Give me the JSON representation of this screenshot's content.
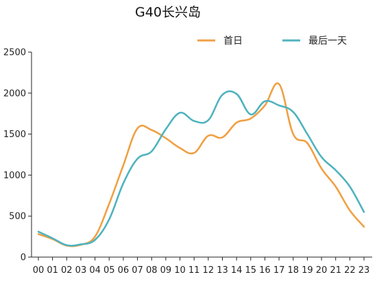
{
  "chart_data": {
    "type": "line",
    "title": "G40长兴岛",
    "xlabel": "",
    "ylabel": "",
    "categories": [
      "00",
      "01",
      "02",
      "03",
      "04",
      "05",
      "06",
      "07",
      "08",
      "09",
      "10",
      "11",
      "12",
      "13",
      "14",
      "15",
      "16",
      "17",
      "18",
      "19",
      "20",
      "21",
      "22",
      "23"
    ],
    "ylim": [
      0,
      2500
    ],
    "yticks": [
      0,
      500,
      1000,
      1500,
      2000,
      2500
    ],
    "grid": false,
    "legend_position": "top-right",
    "series": [
      {
        "name": "首日",
        "color": "#f0a044",
        "values": [
          280,
          220,
          140,
          150,
          250,
          650,
          1120,
          1570,
          1550,
          1450,
          1330,
          1270,
          1480,
          1460,
          1640,
          1690,
          1850,
          2110,
          1500,
          1390,
          1080,
          860,
          570,
          370
        ]
      },
      {
        "name": "最后一天",
        "color": "#4fb3bf",
        "values": [
          310,
          230,
          145,
          155,
          210,
          460,
          900,
          1200,
          1290,
          1560,
          1760,
          1660,
          1670,
          1980,
          1990,
          1740,
          1900,
          1850,
          1770,
          1500,
          1220,
          1060,
          860,
          550
        ]
      }
    ]
  }
}
